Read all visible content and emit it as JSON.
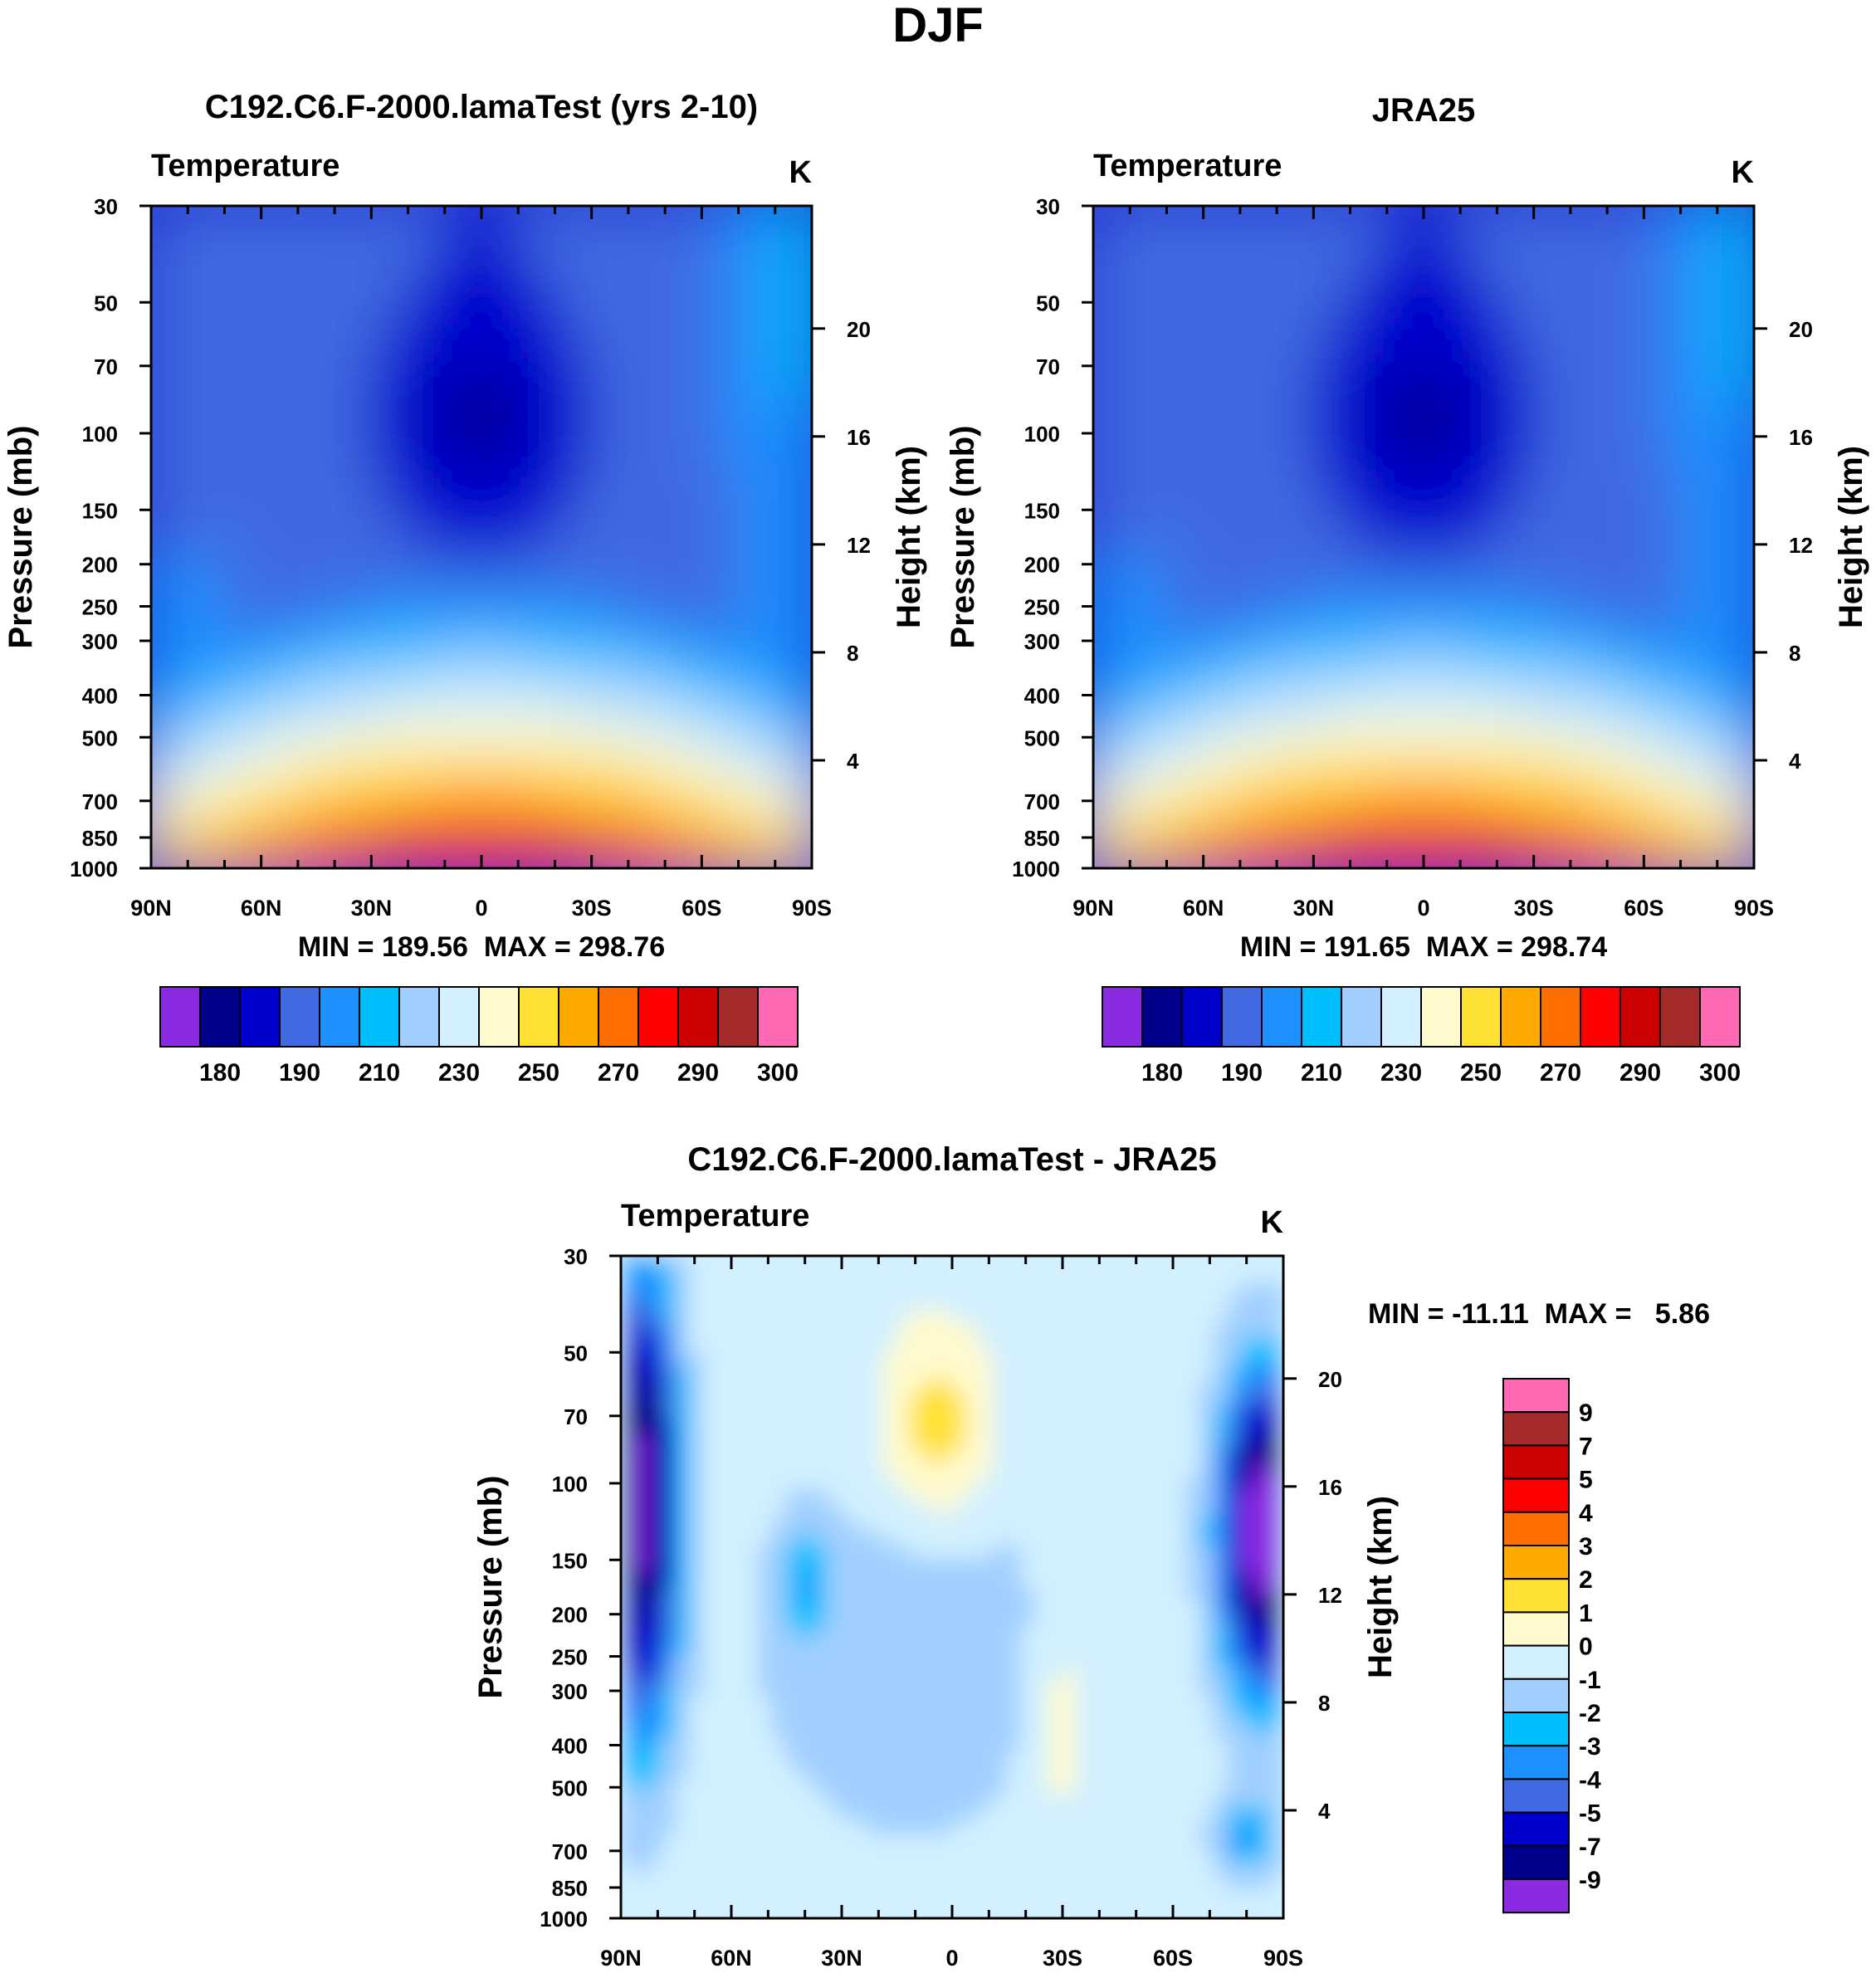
{
  "figure": {
    "title": "DJF",
    "colors": {
      "temp_levels": [
        "#8a2be2",
        "#00008b",
        "#0000cd",
        "#4169e1",
        "#1e90ff",
        "#00bfff",
        "#a0cfff",
        "#d2f0ff",
        "#fffacd",
        "#ffe135",
        "#ffaa00",
        "#ff6f00",
        "#ff0000",
        "#cc0000",
        "#a52a2a",
        "#ff69b4"
      ],
      "diff_levels": [
        "#8a2be2",
        "#00008b",
        "#0000cd",
        "#4169e1",
        "#1e90ff",
        "#00bfff",
        "#a0cfff",
        "#d2f0ff",
        "#fffacd",
        "#ffe135",
        "#ffaa00",
        "#ff6f00",
        "#ff0000",
        "#cc0000",
        "#a52a2a",
        "#ff69b4"
      ]
    }
  },
  "chart_data": [
    {
      "type": "heatmap",
      "title": "C192.C6.F-2000.lamaTest (yrs 2-10)",
      "left_label": "Temperature",
      "right_label": "K",
      "ylabel": "Pressure (mb)",
      "ylabel_right": "Height (km)",
      "x_ticks": [
        "90N",
        "60N",
        "30N",
        "0",
        "30S",
        "60S",
        "90S"
      ],
      "x_range": [
        90,
        -90
      ],
      "y_ticks": [
        "30",
        "50",
        "70",
        "100",
        "150",
        "200",
        "250",
        "300",
        "400",
        "500",
        "700",
        "850",
        "1000"
      ],
      "y_tick_values": [
        30,
        50,
        70,
        100,
        150,
        200,
        250,
        300,
        400,
        500,
        700,
        850,
        1000
      ],
      "height_ticks": [
        "20",
        "16",
        "12",
        "8",
        "4"
      ],
      "height_tick_values": [
        20,
        16,
        12,
        8,
        4
      ],
      "stats": "MIN = 189.56  MAX = 298.76",
      "min": 189.56,
      "max": 298.76,
      "colorbar_labels": [
        "180",
        "190",
        "210",
        "230",
        "250",
        "270",
        "290",
        "300"
      ]
    },
    {
      "type": "heatmap",
      "title": "JRA25",
      "left_label": "Temperature",
      "right_label": "K",
      "ylabel": "Pressure (mb)",
      "ylabel_right": "Height (km)",
      "x_ticks": [
        "90N",
        "60N",
        "30N",
        "0",
        "30S",
        "60S",
        "90S"
      ],
      "x_range": [
        90,
        -90
      ],
      "y_ticks": [
        "30",
        "50",
        "70",
        "100",
        "150",
        "200",
        "250",
        "300",
        "400",
        "500",
        "700",
        "850",
        "1000"
      ],
      "y_tick_values": [
        30,
        50,
        70,
        100,
        150,
        200,
        250,
        300,
        400,
        500,
        700,
        850,
        1000
      ],
      "height_ticks": [
        "20",
        "16",
        "12",
        "8",
        "4"
      ],
      "height_tick_values": [
        20,
        16,
        12,
        8,
        4
      ],
      "stats": "MIN = 191.65  MAX = 298.74",
      "min": 191.65,
      "max": 298.74,
      "colorbar_labels": [
        "180",
        "190",
        "210",
        "230",
        "250",
        "270",
        "290",
        "300"
      ]
    },
    {
      "type": "heatmap",
      "title": "C192.C6.F-2000.lamaTest - JRA25",
      "left_label": "Temperature",
      "right_label": "K",
      "ylabel": "Pressure (mb)",
      "ylabel_right": "Height (km)",
      "x_ticks": [
        "90N",
        "60N",
        "30N",
        "0",
        "30S",
        "60S",
        "90S"
      ],
      "x_range": [
        90,
        -90
      ],
      "y_ticks": [
        "30",
        "50",
        "70",
        "100",
        "150",
        "200",
        "250",
        "300",
        "400",
        "500",
        "700",
        "850",
        "1000"
      ],
      "y_tick_values": [
        30,
        50,
        70,
        100,
        150,
        200,
        250,
        300,
        400,
        500,
        700,
        850,
        1000
      ],
      "height_ticks": [
        "20",
        "16",
        "12",
        "8",
        "4"
      ],
      "height_tick_values": [
        20,
        16,
        12,
        8,
        4
      ],
      "stats": "MIN = -11.11  MAX =   5.86",
      "min": -11.11,
      "max": 5.86,
      "colorbar_labels": [
        "9",
        "7",
        "5",
        "4",
        "3",
        "2",
        "1",
        "0",
        "-1",
        "-2",
        "-3",
        "-4",
        "-5",
        "-7",
        "-9"
      ]
    }
  ]
}
